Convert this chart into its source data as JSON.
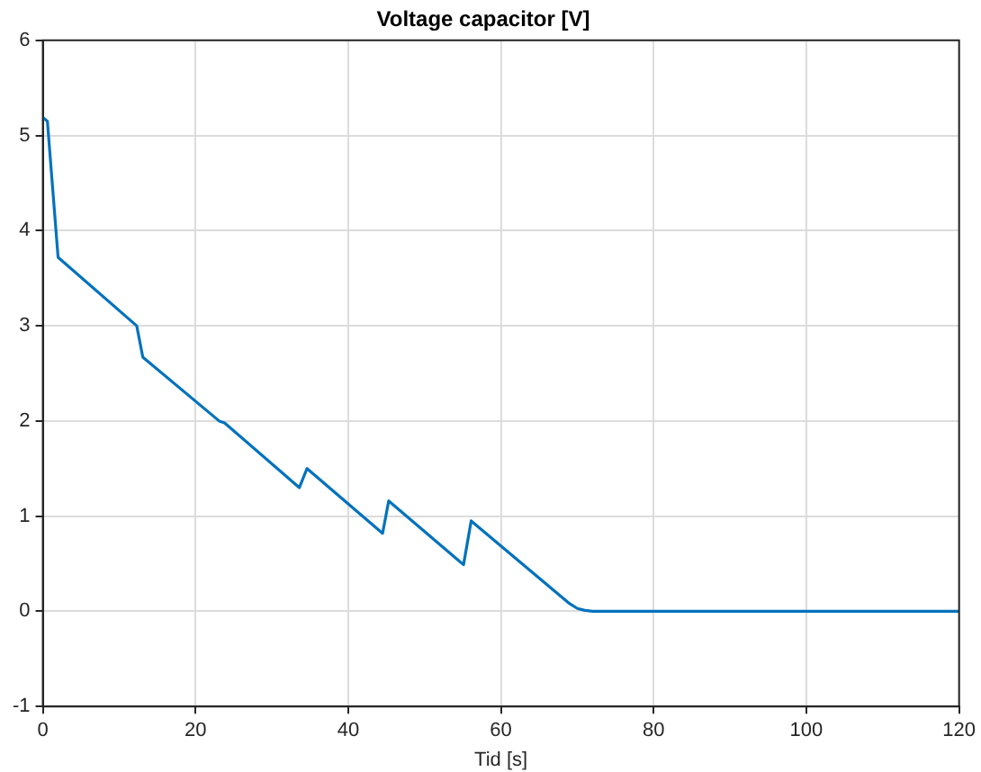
{
  "chart_data": {
    "type": "line",
    "title": "Voltage capacitor [V]",
    "xlabel": "Tid [s]",
    "series": [
      {
        "color": "#0072bd",
        "x": [
          0,
          0.6,
          2,
          12.3,
          13.1,
          23.1,
          23.8,
          33.6,
          34.6,
          44.5,
          45.3,
          55.1,
          56.1,
          69,
          70,
          71,
          72,
          75,
          120
        ],
        "values": [
          5.19,
          5.15,
          3.72,
          3.0,
          2.67,
          2.0,
          1.98,
          1.3,
          1.5,
          0.82,
          1.16,
          0.49,
          0.95,
          0.08,
          0.03,
          0.01,
          0,
          0,
          0
        ]
      }
    ],
    "xlim": [
      0,
      120
    ],
    "xticks": [
      0,
      20,
      40,
      60,
      80,
      100,
      120
    ],
    "ylim": [
      -1,
      6
    ],
    "yticks": [
      -1,
      0,
      1,
      2,
      3,
      4,
      5,
      6
    ],
    "grid": true,
    "legend": false,
    "marker": "none",
    "line_style": "solid"
  }
}
